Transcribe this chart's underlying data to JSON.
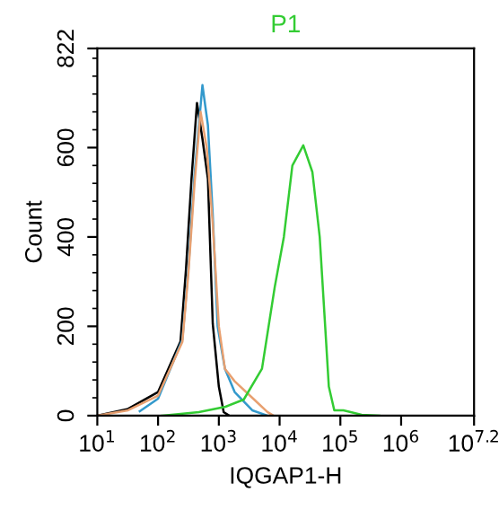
{
  "chart_data": {
    "type": "line",
    "xlabel": "IQGAP1-H",
    "ylabel": "Count",
    "log": "x",
    "xlim": [
      10,
      15848932
    ],
    "xticks": [
      {
        "value": 10,
        "label": "10$^{1}$"
      },
      {
        "value": 100,
        "label": "10$^{2}$"
      },
      {
        "value": 1000,
        "label": "10$^{3}$"
      },
      {
        "value": 10000,
        "label": "10$^{4}$"
      },
      {
        "value": 100000,
        "label": "10$^{5}$"
      },
      {
        "value": 1000000,
        "label": "10$^{6}$"
      },
      {
        "value": 15848932,
        "label": "10$^{7.2}$"
      }
    ],
    "ylim": [
      0,
      822
    ],
    "yticks": [
      0,
      200,
      400,
      600,
      822
    ],
    "grid": false,
    "legend": false,
    "series": [
      {
        "color": "#000000",
        "x": [
          10,
          32,
          100,
          234,
          288,
          355,
          437,
          537,
          661,
          794,
          1000,
          1202,
          1479
        ],
        "values": [
          0,
          15,
          53,
          166,
          328,
          530,
          700,
          620,
          530,
          206,
          65,
          8,
          0
        ]
      },
      {
        "color": "#3399cc",
        "x": [
          50,
          100,
          251,
          316,
          398,
          537,
          661,
          794,
          955,
          1259,
          1820,
          3548,
          6310
        ],
        "values": [
          10,
          38,
          170,
          330,
          540,
          740,
          650,
          450,
          200,
          105,
          53,
          12,
          0
        ]
      },
      {
        "color": "#e8a070",
        "x": [
          10,
          32,
          100,
          251,
          316,
          398,
          501,
          631,
          794,
          1000,
          1259,
          1820,
          3548,
          6310,
          7943
        ],
        "values": [
          0,
          12,
          45,
          165,
          320,
          520,
          680,
          600,
          430,
          200,
          105,
          77,
          40,
          8,
          0
        ]
      },
      {
        "name": "P1",
        "color": "#33cc33",
        "x": [
          117,
          468,
          1288,
          2570,
          5129,
          8318,
          11749,
          16218,
          24547,
          34674,
          45709,
          56234,
          64565,
          79433,
          112202,
          223872,
          436516
        ],
        "values": [
          0,
          8,
          20,
          36,
          105,
          288,
          400,
          560,
          605,
          545,
          400,
          200,
          65,
          12,
          12,
          2,
          0
        ]
      }
    ]
  }
}
